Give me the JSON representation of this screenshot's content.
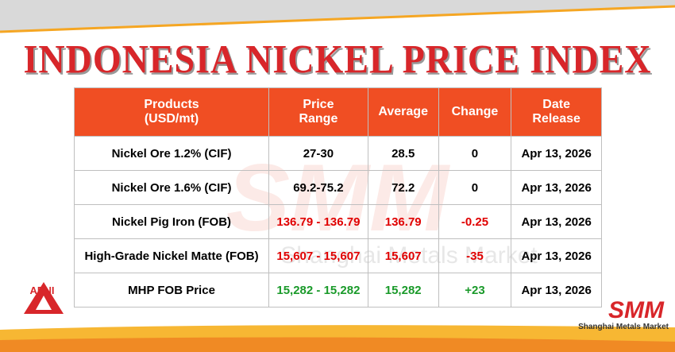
{
  "header": {
    "title": "INDONESIA NICKEL PRICE INDEX"
  },
  "table": {
    "columns": [
      "Products\n(USD/mt)",
      "Price\nRange",
      "Average",
      "Change",
      "Date\nRelease"
    ],
    "rows": [
      {
        "cells": [
          "Nickel Ore 1.2% (CIF)",
          "27-30",
          "28.5",
          "0",
          "Apr 13, 2026"
        ],
        "color": "#000000"
      },
      {
        "cells": [
          "Nickel Ore 1.6% (CIF)",
          "69.2-75.2",
          "72.2",
          "0",
          "Apr 13, 2026"
        ],
        "color": "#000000"
      },
      {
        "cells": [
          "Nickel Pig Iron (FOB)",
          "136.79 - 136.79",
          "136.79",
          "-0.25",
          "Apr 13, 2026"
        ],
        "color": "#e00000"
      },
      {
        "cells": [
          "High-Grade Nickel Matte (FOB)",
          "15,607 - 15,607",
          "15,607",
          "-35",
          "Apr 13, 2026"
        ],
        "color": "#e00000"
      },
      {
        "cells": [
          "MHP FOB Price",
          "15,282 - 15,282",
          "15,282",
          "+23",
          "Apr 13, 2026"
        ],
        "color": "#1a9a2a"
      }
    ]
  },
  "logos": {
    "left": "APNI",
    "right": "SMM",
    "right_caption": "Shanghai Metals Market"
  },
  "watermark": {
    "mark": "SMM",
    "caption": "Shanghai Metals Market"
  }
}
